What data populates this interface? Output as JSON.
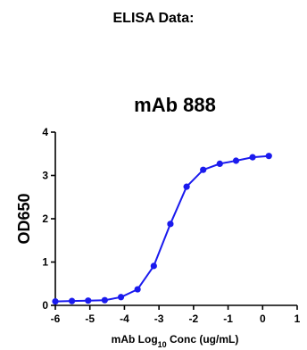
{
  "page": {
    "heading": "ELISA Data:"
  },
  "chart_data": {
    "type": "line",
    "title": "mAb 888",
    "xlabel_prefix": "mAb Log",
    "xlabel_sub": "10",
    "xlabel_suffix": " Conc (ug/mL)",
    "ylabel": "OD650",
    "xlim": [
      -6,
      1
    ],
    "ylim": [
      0,
      4
    ],
    "xticks": [
      -6,
      -5,
      -4,
      -3,
      -2,
      -1,
      0,
      1
    ],
    "yticks": [
      0,
      1,
      2,
      3,
      4
    ],
    "grid": false,
    "color": "#1a1aee",
    "series": [
      {
        "x": [
          -6.0,
          -5.52,
          -5.05,
          -4.57,
          -4.1,
          -3.62,
          -3.15,
          -2.67,
          -2.2,
          -1.72,
          -1.24,
          -0.77,
          -0.29,
          0.18
        ],
        "y": [
          0.09,
          0.1,
          0.11,
          0.12,
          0.19,
          0.37,
          0.91,
          1.88,
          2.74,
          3.13,
          3.27,
          3.34,
          3.42,
          3.45
        ]
      }
    ]
  }
}
